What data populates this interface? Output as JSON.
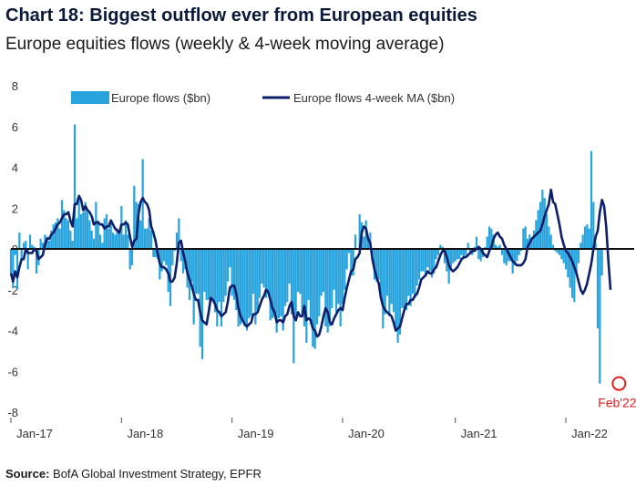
{
  "title": "Chart 18: Biggest outflow ever from European equities",
  "subtitle": "Europe equities flows (weekly & 4-week moving average)",
  "source": {
    "label": "Source:",
    "text": "BofA Global Investment Strategy, EPFR"
  },
  "colors": {
    "bar": "#29a3dc",
    "line": "#0d1f6b",
    "zero": "#111111",
    "annotation": "#e02020"
  },
  "chart_data": {
    "type": "bar",
    "title": "Europe equities flows (weekly & 4-week moving average)",
    "ylim": [
      -8,
      8
    ],
    "y_ticks": [
      8,
      6,
      4,
      2,
      0,
      -2,
      -4,
      -6,
      -8
    ],
    "x_ticks": [
      {
        "label": "Jan-17",
        "week": 0
      },
      {
        "label": "Jan-18",
        "week": 52
      },
      {
        "label": "Jan-19",
        "week": 104
      },
      {
        "label": "Jan-20",
        "week": 156
      },
      {
        "label": "Jan-21",
        "week": 209
      },
      {
        "label": "Jan-22",
        "week": 261
      }
    ],
    "x_range_weeks": [
      0,
      288
    ],
    "legend": [
      "Europe flows ($bn)",
      "Europe flows 4-week MA ($bn)"
    ],
    "legend_position": "top",
    "annotation": {
      "label": "Feb'22",
      "week": 286,
      "value": -6.6
    },
    "series": [
      {
        "name": "Europe flows ($bn)",
        "kind": "bar",
        "values": [
          -1.2,
          -1.9,
          -0.3,
          -2.0,
          0.8,
          -0.6,
          0.3,
          0.4,
          -1.0,
          0.7,
          0.2,
          0.1,
          -1.2,
          -0.8,
          0.5,
          0.3,
          0.7,
          0.6,
          0.4,
          0.9,
          1.2,
          1.3,
          1.5,
          1.0,
          2.4,
          1.9,
          1.5,
          1.4,
          0.9,
          0.4,
          6.1,
          1.5,
          2.4,
          1.7,
          1.8,
          2.3,
          1.8,
          1.4,
          0.9,
          0.5,
          2.3,
          1.4,
          0.7,
          0.3,
          1.5,
          1.7,
          1.0,
          1.3,
          0.8,
          0.7,
          1.0,
          0.9,
          2.1,
          0.7,
          1.4,
          0.7,
          -1.0,
          -0.8,
          3.1,
          2.3,
          2.2,
          1.4,
          4.4,
          1.0,
          1.0,
          1.5,
          0.9,
          -0.4,
          -0.4,
          -0.5,
          -1.5,
          -1.1,
          -0.6,
          -0.8,
          -2.1,
          -2.8,
          -0.8,
          -0.1,
          0.8,
          1.5,
          -0.6,
          -1.2,
          -1.0,
          -1.9,
          -2.5,
          -1.6,
          -3.7,
          -2.2,
          -2.2,
          -4.8,
          -5.4,
          -2.1,
          -2.5,
          -2.5,
          -2.6,
          -2.5,
          -3.1,
          -3.8,
          -2.6,
          -3.8,
          -2.6,
          -2.3,
          -1.6,
          -0.9,
          -2.3,
          -2.5,
          -3.0,
          -3.8,
          -3.7,
          -3.6,
          -3.8,
          -4.0,
          -3.4,
          -3.3,
          -2.2,
          -3.7,
          -3.0,
          -2.4,
          -1.7,
          -1.9,
          -2.4,
          -2.2,
          -3.5,
          -3.4,
          -3.3,
          -4.1,
          -3.4,
          -3.3,
          -4.0,
          -2.8,
          -2.6,
          -1.7,
          -3.2,
          -5.6,
          -3.3,
          -2.1,
          -2.2,
          -3.2,
          -3.8,
          -4.6,
          -2.5,
          -3.7,
          -4.8,
          -4.9,
          -3.7,
          -3.3,
          -2.3,
          -2.1,
          -3.8,
          -4.1,
          -3.8,
          -2.9,
          -2.0,
          -3.1,
          -2.7,
          -3.8,
          -2.7,
          -2.0,
          -1.0,
          -0.2,
          -1.3,
          -1.3,
          0.7,
          0.0,
          1.7,
          1.3,
          0.6,
          1.4,
          0.5,
          0.8,
          -0.3,
          -1.5,
          -1.6,
          -1.5,
          -2.2,
          -3.9,
          -3.2,
          -2.3,
          -3.3,
          -2.7,
          -3.1,
          -4.0,
          -4.6,
          -4.2,
          -2.9,
          -2.9,
          -3.0,
          -2.3,
          -2.8,
          -2.2,
          -2.4,
          -1.8,
          -1.5,
          -1.1,
          -1.1,
          -1.3,
          -0.9,
          -1.1,
          -1.4,
          -1.2,
          -0.5,
          -0.3,
          0.2,
          0.1,
          -0.7,
          -1.1,
          -1.7,
          -0.9,
          -0.7,
          -0.6,
          -0.5,
          -0.5,
          -0.3,
          -0.5,
          -0.3,
          0.3,
          -0.2,
          -0.3,
          0.1,
          0.6,
          -0.5,
          -0.6,
          -0.4,
          0.1,
          0.6,
          1.1,
          1.0,
          0.7,
          0.2,
          0.1,
          0.2,
          -0.3,
          -0.7,
          -0.8,
          -0.6,
          -0.6,
          -1.2,
          -0.8,
          -0.6,
          -0.3,
          -0.1,
          1.0,
          1.1,
          0.5,
          0.7,
          0.5,
          0.9,
          1.4,
          1.9,
          2.3,
          2.9,
          2.5,
          1.7,
          1.1,
          0.7,
          0.2,
          -0.1,
          -0.2,
          -0.3,
          -0.5,
          -0.7,
          -1.0,
          -1.4,
          -1.9,
          -2.4,
          -2.6,
          -1.2,
          -0.7,
          0.3,
          0.7,
          1.1,
          1.2,
          1.0,
          4.8,
          2.3,
          0.3,
          -3.9,
          -6.6,
          -1.3
        ]
      },
      {
        "name": "Europe flows 4-week MA ($bn)",
        "kind": "line",
        "values": [
          -1.2,
          -1.6,
          -1.1,
          -1.4,
          -0.9,
          -0.5,
          -0.5,
          0.0,
          -0.2,
          -0.2,
          -0.2,
          0.0,
          -0.1,
          -0.5,
          -0.4,
          -0.3,
          0.2,
          0.5,
          0.5,
          0.7,
          0.8,
          1.0,
          1.2,
          1.3,
          1.5,
          1.7,
          1.7,
          1.8,
          1.4,
          1.1,
          2.2,
          2.2,
          2.6,
          2.4,
          1.9,
          2.1,
          1.9,
          1.8,
          1.6,
          1.2,
          1.3,
          1.3,
          1.2,
          1.2,
          1.0,
          1.1,
          1.1,
          1.4,
          1.2,
          1.0,
          0.9,
          0.8,
          1.2,
          1.2,
          1.3,
          1.2,
          0.6,
          0.1,
          0.4,
          0.5,
          1.7,
          2.3,
          2.5,
          2.3,
          2.2,
          1.9,
          1.1,
          0.8,
          0.4,
          -0.2,
          -0.7,
          -0.9,
          -0.9,
          -1.0,
          -1.2,
          -1.6,
          -1.6,
          -1.4,
          -0.7,
          0.3,
          0.4,
          -0.2,
          -0.6,
          -1.2,
          -1.5,
          -1.8,
          -2.2,
          -2.5,
          -2.5,
          -3.1,
          -3.5,
          -3.6,
          -3.7,
          -3.1,
          -2.4,
          -2.5,
          -2.7,
          -3.0,
          -3.1,
          -3.3,
          -3.2,
          -3.1,
          -2.6,
          -1.9,
          -1.8,
          -1.8,
          -2.2,
          -2.9,
          -3.3,
          -3.5,
          -3.7,
          -3.8,
          -3.7,
          -3.6,
          -3.2,
          -3.2,
          -3.1,
          -2.8,
          -2.5,
          -2.3,
          -2.0,
          -2.1,
          -2.5,
          -2.9,
          -3.1,
          -3.6,
          -3.5,
          -3.5,
          -3.6,
          -3.3,
          -3.2,
          -2.8,
          -2.6,
          -3.3,
          -3.5,
          -3.1,
          -3.3,
          -3.3,
          -2.8,
          -3.5,
          -3.4,
          -3.5,
          -3.9,
          -4.0,
          -4.3,
          -4.2,
          -3.8,
          -3.3,
          -2.9,
          -3.1,
          -3.6,
          -3.7,
          -3.4,
          -3.2,
          -3.0,
          -2.9,
          -3.0,
          -2.4,
          -1.9,
          -1.5,
          -1.1,
          -1.0,
          -0.5,
          -0.4,
          -0.2,
          0.8,
          1.1,
          1.0,
          0.5,
          0.3,
          -0.5,
          -1.0,
          -1.4,
          -1.7,
          -2.4,
          -2.8,
          -3.0,
          -3.1,
          -3.2,
          -3.3,
          -3.6,
          -4.0,
          -3.9,
          -3.8,
          -3.4,
          -3.0,
          -2.7,
          -2.7,
          -2.5,
          -2.5,
          -2.3,
          -2.2,
          -1.9,
          -1.5,
          -1.4,
          -1.3,
          -1.1,
          -1.2,
          -1.2,
          -1.0,
          -0.9,
          -0.6,
          -0.3,
          -0.1,
          -0.1,
          -0.4,
          -0.8,
          -1.0,
          -1.1,
          -1.0,
          -0.9,
          -0.7,
          -0.5,
          -0.4,
          -0.4,
          -0.3,
          -0.2,
          -0.1,
          -0.1,
          0.0,
          0.1,
          0.0,
          -0.2,
          -0.3,
          -0.4,
          -0.1,
          0.1,
          0.5,
          0.7,
          0.8,
          0.6,
          0.5,
          0.2,
          0.0,
          -0.2,
          -0.4,
          -0.6,
          -0.7,
          -0.8,
          -0.8,
          -0.8,
          -0.7,
          -0.5,
          0.1,
          0.3,
          0.5,
          0.6,
          0.7,
          0.8,
          0.9,
          1.2,
          1.6,
          1.9,
          2.2,
          2.9,
          2.3,
          2.2,
          1.7,
          1.2,
          0.6,
          0.2,
          -0.1,
          -0.2,
          -0.4,
          -0.6,
          -0.9,
          -1.2,
          -1.6,
          -2.0,
          -2.2,
          -2.0,
          -1.7,
          -1.2,
          -0.7,
          0.0,
          0.6,
          0.9,
          1.8,
          2.4,
          2.1,
          1.1,
          -0.6,
          -2.0
        ]
      }
    ]
  }
}
